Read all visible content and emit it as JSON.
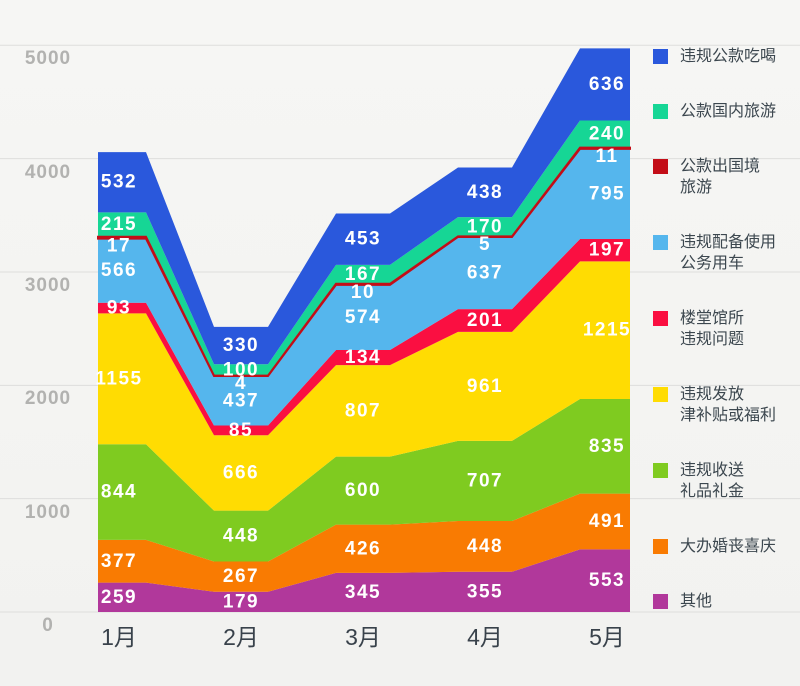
{
  "chart_data": {
    "type": "area",
    "stacked": true,
    "title": "",
    "categories": [
      "1月",
      "2月",
      "3月",
      "4月",
      "5月"
    ],
    "series": [
      {
        "name": "违规公款吃喝",
        "color": "#2a58dc",
        "values": [
          532,
          330,
          453,
          438,
          636
        ]
      },
      {
        "name": "公款国内旅游",
        "color": "#16d695",
        "values": [
          215,
          100,
          167,
          170,
          240
        ]
      },
      {
        "name": "公款出国境旅游",
        "legend_label": "公款出国境\n旅游",
        "color": "#c30d17",
        "values": [
          17,
          4,
          10,
          5,
          11
        ]
      },
      {
        "name": "违规配备使用公务用车",
        "legend_label": "违规配备使用\n公务用车",
        "color": "#55b6ed",
        "values": [
          566,
          437,
          574,
          637,
          795
        ]
      },
      {
        "name": "楼堂馆所违规问题",
        "legend_label": "楼堂馆所\n违规问题",
        "color": "#fa0f41",
        "values": [
          93,
          85,
          134,
          201,
          197
        ]
      },
      {
        "name": "违规发放津补贴或福利",
        "legend_label": "违规发放\n津补贴或福利",
        "color": "#ffdc02",
        "values": [
          1155,
          666,
          807,
          961,
          1215
        ]
      },
      {
        "name": "违规收送礼品礼金",
        "legend_label": "违规收送\n礼品礼金",
        "color": "#7fcb20",
        "values": [
          844,
          448,
          600,
          707,
          835
        ]
      },
      {
        "name": "大办婚丧喜庆",
        "color": "#f97b02",
        "values": [
          377,
          267,
          426,
          448,
          491
        ]
      },
      {
        "name": "其他",
        "color": "#b1389b",
        "values": [
          259,
          179,
          345,
          355,
          553
        ]
      }
    ],
    "y_ticks": [
      0,
      1000,
      2000,
      3000,
      4000,
      5000
    ],
    "ylim": [
      0,
      5000
    ],
    "grid": true,
    "legend_position": "right",
    "colors": {
      "background": "#f4f4f2",
      "gridline": "#dededc",
      "tick_text": "#b2b2b0",
      "axis_text": "#39424b",
      "value_text": "#ffffff"
    }
  }
}
